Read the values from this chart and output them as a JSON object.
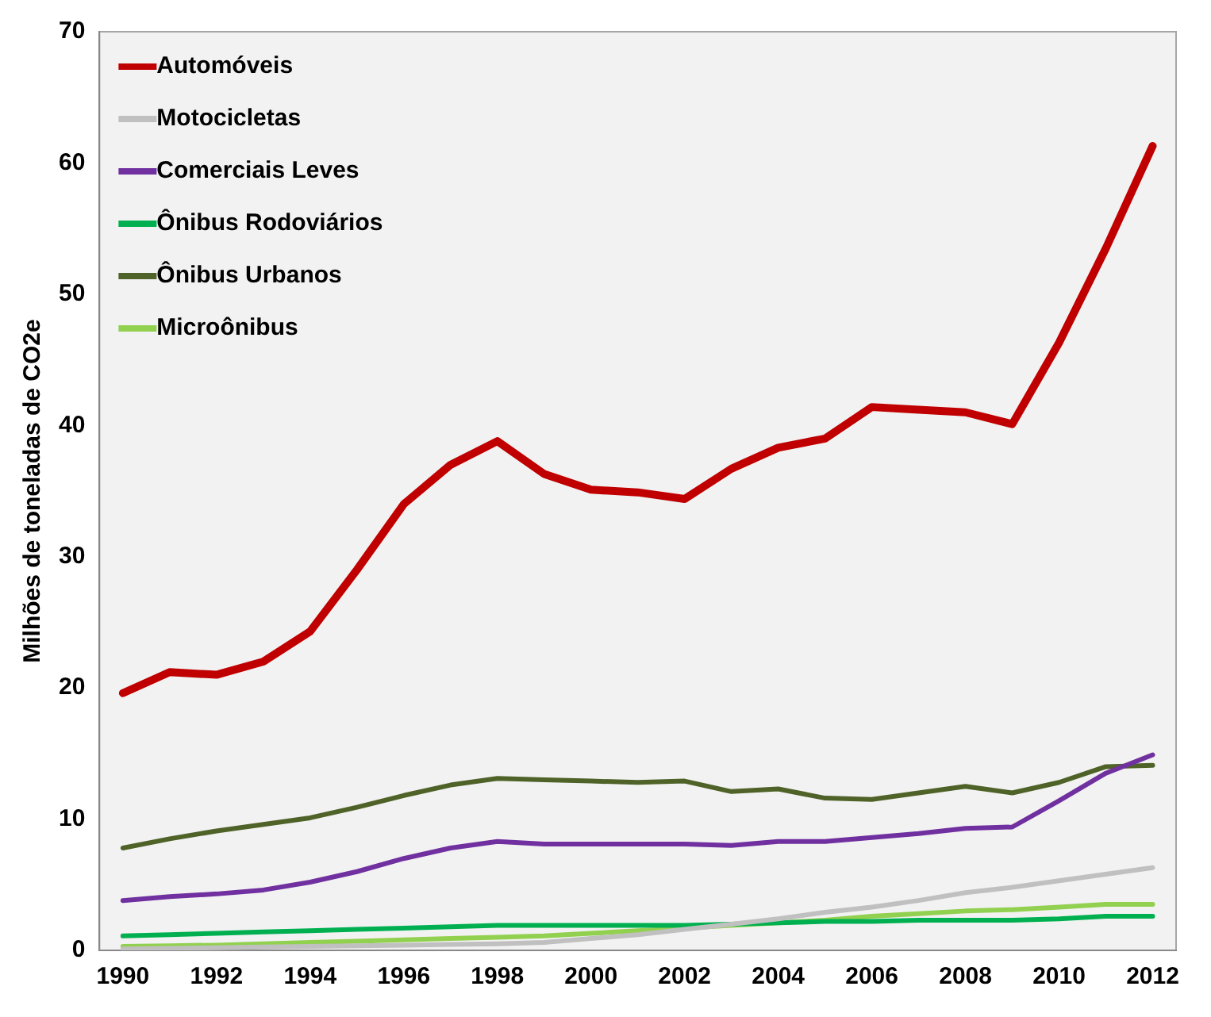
{
  "chart_data": {
    "type": "line",
    "ylabel": "Milhões de toneladas de CO2e",
    "categories": [
      "1990",
      null,
      "1992",
      null,
      "1994",
      null,
      "1996",
      null,
      "1998",
      null,
      "2000",
      null,
      "2002",
      null,
      "2004",
      null,
      "2006",
      null,
      "2008",
      null,
      "2010",
      null,
      "2012"
    ],
    "ylim": [
      0,
      70
    ],
    "yticks": [
      0,
      10,
      20,
      30,
      40,
      50,
      60,
      70
    ],
    "grid": false,
    "legend": "top left",
    "marker": "none",
    "line_style": "solid",
    "series": [
      {
        "name": "Automóveis",
        "color": "#c00000",
        "values": [
          19.6,
          21.2,
          21.0,
          22.0,
          24.3,
          29,
          34,
          37,
          38.8,
          36.3,
          35.1,
          34.9,
          34.4,
          36.7,
          38.3,
          39,
          41.4,
          41.2,
          41,
          40.1,
          46.3,
          53.5,
          61.3
        ]
      },
      {
        "name": "Motocicletas",
        "color": "#c0c0c0",
        "values": [
          0.1,
          0.15,
          0.2,
          0.25,
          0.3,
          0.35,
          0.4,
          0.45,
          0.5,
          0.6,
          0.9,
          1.2,
          1.6,
          2.0,
          2.4,
          2.9,
          3.3,
          3.8,
          4.4,
          4.8,
          5.3,
          5.8,
          6.3
        ]
      },
      {
        "name": "Comerciais Leves",
        "color": "#7030a0",
        "values": [
          3.8,
          4.1,
          4.3,
          4.6,
          5.2,
          6.0,
          7.0,
          7.8,
          8.3,
          8.1,
          8.1,
          8.1,
          8.1,
          8.0,
          8.3,
          8.3,
          8.6,
          8.9,
          9.3,
          9.4,
          11.4,
          13.5,
          14.9
        ]
      },
      {
        "name": "Ônibus Rodoviários",
        "color": "#00b050",
        "values": [
          1.1,
          1.2,
          1.3,
          1.4,
          1.5,
          1.6,
          1.7,
          1.8,
          1.9,
          1.9,
          1.9,
          1.9,
          1.9,
          2.0,
          2.1,
          2.2,
          2.2,
          2.3,
          2.3,
          2.3,
          2.4,
          2.6,
          2.6
        ]
      },
      {
        "name": "Ônibus Urbanos",
        "color": "#4f6228",
        "values": [
          7.8,
          8.5,
          9.1,
          9.6,
          10.1,
          10.9,
          11.8,
          12.6,
          13.1,
          13.0,
          12.9,
          12.8,
          12.9,
          12.1,
          12.3,
          11.6,
          11.5,
          12.0,
          12.5,
          12.0,
          12.8,
          14.0,
          14.1
        ]
      },
      {
        "name": "Microônibus",
        "color": "#92d050",
        "values": [
          0.3,
          0.35,
          0.4,
          0.5,
          0.6,
          0.7,
          0.8,
          0.9,
          1.0,
          1.1,
          1.3,
          1.5,
          1.7,
          1.9,
          2.1,
          2.3,
          2.6,
          2.8,
          3.0,
          3.1,
          3.3,
          3.5,
          3.5
        ]
      }
    ]
  }
}
